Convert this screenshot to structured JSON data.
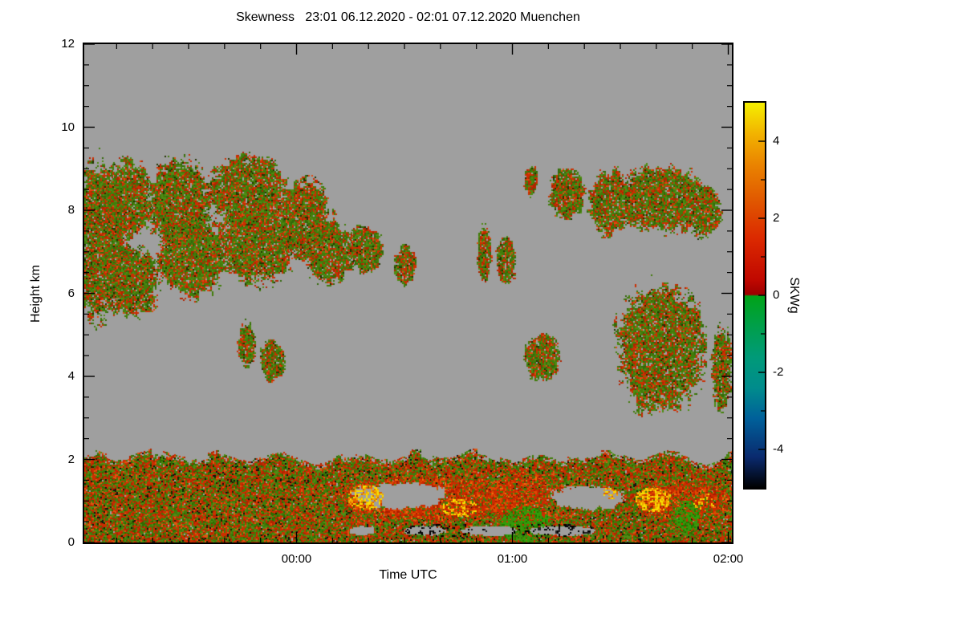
{
  "chart_data": {
    "type": "heatmap",
    "title": "Skewness   23:01 06.12.2020 - 02:01 07.12.2020 Muenchen",
    "xlabel": "Time UTC",
    "ylabel": "Height km",
    "colorbar_label": "SKWg",
    "x_range_minutes": [
      0,
      180
    ],
    "y_range_km": [
      0,
      12
    ],
    "value_range": [
      -5,
      5
    ],
    "no_data_color": "#9f9f9f",
    "x_ticks": [
      {
        "t": 59,
        "label": "00:00"
      },
      {
        "t": 119,
        "label": "01:00"
      },
      {
        "t": 179,
        "label": "02:00"
      }
    ],
    "x_minor_step_min": 10,
    "y_ticks": [
      {
        "h": 0,
        "label": "0"
      },
      {
        "h": 2,
        "label": "2"
      },
      {
        "h": 4,
        "label": "4"
      },
      {
        "h": 6,
        "label": "6"
      },
      {
        "h": 8,
        "label": "8"
      },
      {
        "h": 10,
        "label": "10"
      },
      {
        "h": 12,
        "label": "12"
      }
    ],
    "y_minor_step_km": 0.5,
    "colorbar_ticks": [
      {
        "v": 4,
        "label": "4"
      },
      {
        "v": 2,
        "label": "2"
      },
      {
        "v": 0,
        "label": "0"
      },
      {
        "v": -2,
        "label": "-2"
      },
      {
        "v": -4,
        "label": "-4"
      }
    ],
    "colorbar_minor_ticks": [
      3,
      1,
      -1,
      -3
    ],
    "colormap_stops": [
      {
        "v": 5.0,
        "c": "#f5ef00"
      },
      {
        "v": 4.2,
        "c": "#f2b300"
      },
      {
        "v": 3.4,
        "c": "#ea8400"
      },
      {
        "v": 2.4,
        "c": "#e05500"
      },
      {
        "v": 1.5,
        "c": "#dc2a00"
      },
      {
        "v": 0.4,
        "c": "#c00800"
      },
      {
        "v": 0.02,
        "c": "#9c0000"
      },
      {
        "v": -0.02,
        "c": "#00a318"
      },
      {
        "v": -0.8,
        "c": "#009f4a"
      },
      {
        "v": -1.6,
        "c": "#009a78"
      },
      {
        "v": -2.4,
        "c": "#008c8c"
      },
      {
        "v": -3.2,
        "c": "#00609a"
      },
      {
        "v": -4.2,
        "c": "#0a2a6e"
      },
      {
        "v": -5.0,
        "c": "#000000"
      }
    ],
    "palettes": {
      "cloud": [
        [
          "#417d0a",
          30
        ],
        [
          "#4f8c14",
          16
        ],
        [
          "#33690a",
          12
        ],
        [
          "#cc2e00",
          20
        ],
        [
          "#b22400",
          12
        ],
        [
          "#e04a10",
          6
        ],
        [
          "#223300",
          4
        ]
      ],
      "bl": [
        [
          "#3f7d0a",
          24
        ],
        [
          "#4f8c14",
          14
        ],
        [
          "#2f6b00",
          10
        ],
        [
          "#cc2e00",
          24
        ],
        [
          "#b22400",
          14
        ],
        [
          "#e05510",
          8
        ],
        [
          "#142800",
          3
        ],
        [
          "#101010",
          3
        ]
      ],
      "red_dom": [
        [
          "#cc2a00",
          40
        ],
        [
          "#e04a00",
          22
        ],
        [
          "#a81e00",
          16
        ],
        [
          "#f07010",
          6
        ],
        [
          "#3f7d0a",
          16
        ]
      ],
      "green_dom": [
        [
          "#2fa00a",
          40
        ],
        [
          "#3f8c0a",
          30
        ],
        [
          "#1f7a00",
          20
        ],
        [
          "#cc2e00",
          10
        ]
      ],
      "hot": [
        [
          "#f7e000",
          40
        ],
        [
          "#f2a800",
          35
        ],
        [
          "#e06800",
          25
        ]
      ],
      "dark": [
        [
          "#000000",
          70
        ],
        [
          "#202020",
          30
        ]
      ]
    },
    "regions": [
      {
        "type": "band",
        "palette": "bl",
        "h_top": 2.05,
        "wave": 0.1
      },
      {
        "type": "blob",
        "palette": "cloud",
        "t": 4,
        "h": 7.3,
        "rt": 8,
        "rh": 2.0
      },
      {
        "type": "blob",
        "palette": "cloud",
        "t": 12,
        "h": 8.3,
        "rt": 7,
        "rh": 1.0
      },
      {
        "type": "blob",
        "palette": "cloud",
        "t": 14,
        "h": 6.3,
        "rt": 7,
        "rh": 0.9
      },
      {
        "type": "blob",
        "palette": "cloud",
        "t": 26,
        "h": 8.2,
        "rt": 9,
        "rh": 1.1
      },
      {
        "type": "blob",
        "palette": "cloud",
        "t": 30,
        "h": 6.9,
        "rt": 10,
        "rh": 1.0
      },
      {
        "type": "blob",
        "palette": "cloud",
        "t": 45,
        "h": 8.5,
        "rt": 11,
        "rh": 0.9
      },
      {
        "type": "blob",
        "palette": "cloud",
        "t": 48,
        "h": 7.2,
        "rt": 11,
        "rh": 1.0
      },
      {
        "type": "blob",
        "palette": "cloud",
        "t": 61,
        "h": 7.8,
        "rt": 8,
        "rh": 1.0
      },
      {
        "type": "blob",
        "palette": "cloud",
        "t": 68,
        "h": 7.0,
        "rt": 7,
        "rh": 0.8
      },
      {
        "type": "blob",
        "palette": "cloud",
        "t": 78,
        "h": 7.1,
        "rt": 5,
        "rh": 0.6
      },
      {
        "type": "blob",
        "palette": "cloud",
        "t": 89,
        "h": 6.7,
        "rt": 3,
        "rh": 0.5
      },
      {
        "type": "blob",
        "palette": "cloud",
        "t": 45,
        "h": 4.8,
        "rt": 2.5,
        "rh": 0.55
      },
      {
        "type": "blob",
        "palette": "cloud",
        "t": 52,
        "h": 4.4,
        "rt": 3.5,
        "rh": 0.55
      },
      {
        "type": "blob",
        "palette": "cloud",
        "t": 111,
        "h": 7.0,
        "rt": 2,
        "rh": 0.7
      },
      {
        "type": "blob",
        "palette": "cloud",
        "t": 117,
        "h": 6.8,
        "rt": 3,
        "rh": 0.6
      },
      {
        "type": "blob",
        "palette": "cloud",
        "t": 124,
        "h": 8.7,
        "rt": 2,
        "rh": 0.4
      },
      {
        "type": "blob",
        "palette": "cloud",
        "t": 127,
        "h": 4.5,
        "rt": 5,
        "rh": 0.6
      },
      {
        "type": "blob",
        "palette": "cloud",
        "t": 134,
        "h": 8.4,
        "rt": 5,
        "rh": 0.7
      },
      {
        "type": "blob",
        "palette": "cloud",
        "t": 146,
        "h": 8.2,
        "rt": 6,
        "rh": 0.8
      },
      {
        "type": "blob",
        "palette": "cloud",
        "t": 160,
        "h": 8.3,
        "rt": 14,
        "rh": 0.85
      },
      {
        "type": "blob",
        "palette": "cloud",
        "t": 172,
        "h": 8.0,
        "rt": 5,
        "rh": 0.7
      },
      {
        "type": "blob",
        "palette": "cloud",
        "t": 160,
        "h": 4.7,
        "rt": 13,
        "rh": 1.6
      },
      {
        "type": "blob",
        "palette": "cloud",
        "t": 177,
        "h": 4.2,
        "rt": 3,
        "rh": 1.1
      },
      {
        "type": "blob",
        "palette": "red_dom",
        "t": 96,
        "h": 1.05,
        "rt": 26,
        "rh": 0.55,
        "cover": 0.85
      },
      {
        "type": "blob",
        "palette": "red_dom",
        "t": 121,
        "h": 1.0,
        "rt": 8,
        "rh": 0.8,
        "cover": 0.8
      },
      {
        "type": "blob",
        "palette": "red_dom",
        "t": 166,
        "h": 1.0,
        "rt": 14,
        "rh": 0.5,
        "cover": 0.85
      },
      {
        "type": "blob",
        "palette": "green_dom",
        "t": 122,
        "h": 0.45,
        "rt": 7,
        "rh": 0.45,
        "cover": 0.85
      },
      {
        "type": "blob",
        "palette": "green_dom",
        "t": 167,
        "h": 0.65,
        "rt": 4,
        "rh": 0.45,
        "cover": 0.85
      },
      {
        "type": "hole",
        "t": 88,
        "h": 1.15,
        "rt": 13,
        "rh": 0.33
      },
      {
        "type": "hole",
        "t": 140,
        "h": 1.1,
        "rt": 11,
        "rh": 0.3
      },
      {
        "type": "hole",
        "t": 77,
        "h": 0.3,
        "rt": 4,
        "rh": 0.1
      },
      {
        "type": "hole",
        "t": 95,
        "h": 0.3,
        "rt": 6,
        "rh": 0.12
      },
      {
        "type": "hole",
        "t": 112,
        "h": 0.3,
        "rt": 8,
        "rh": 0.12
      },
      {
        "type": "hole",
        "t": 133,
        "h": 0.3,
        "rt": 9,
        "rh": 0.12
      },
      {
        "type": "spots",
        "palette": "dark",
        "t": 100,
        "h": 0.32,
        "rt": 12,
        "rh": 0.16,
        "density": 0.3
      },
      {
        "type": "spots",
        "palette": "dark",
        "t": 130,
        "h": 0.32,
        "rt": 12,
        "rh": 0.16,
        "density": 0.3
      },
      {
        "type": "spots",
        "palette": "hot",
        "t": 78,
        "h": 1.1,
        "rt": 5,
        "rh": 0.3,
        "density": 0.55
      },
      {
        "type": "spots",
        "palette": "hot",
        "t": 104,
        "h": 0.85,
        "rt": 5,
        "rh": 0.22,
        "density": 0.5
      },
      {
        "type": "spots",
        "palette": "hot",
        "t": 146,
        "h": 1.2,
        "rt": 2,
        "rh": 0.15,
        "density": 0.5
      },
      {
        "type": "spots",
        "palette": "hot",
        "t": 158,
        "h": 1.05,
        "rt": 5,
        "rh": 0.3,
        "density": 0.6
      },
      {
        "type": "spots",
        "palette": "hot",
        "t": 172,
        "h": 1.0,
        "rt": 3,
        "rh": 0.2,
        "density": 0.4
      }
    ]
  }
}
